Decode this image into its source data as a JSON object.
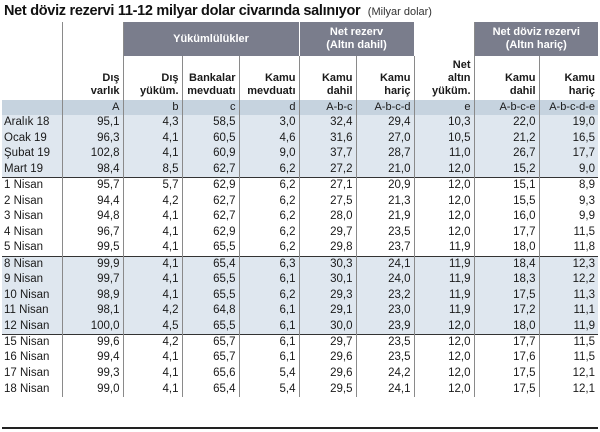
{
  "title": "Net döviz rezervi 11-12 milyar dolar civarında salınıyor",
  "unit": "(Milyar dolar)",
  "groups": {
    "yukumlulukler": "Yükümlülükler",
    "net_rezerv_line1": "Net rezerv",
    "net_rezerv_line2": "(Altın dahil)",
    "net_doviz_line1": "Net döviz rezervi",
    "net_doviz_line2": "(Altın hariç)"
  },
  "columns": [
    {
      "line1": "Dış",
      "line2": "varlık",
      "formula": "A"
    },
    {
      "line1": "Dış",
      "line2": "yüküm.",
      "formula": "b"
    },
    {
      "line1": "Bankalar",
      "line2": "mevduatı",
      "formula": "c"
    },
    {
      "line1": "Kamu",
      "line2": "mevduatı",
      "formula": "d"
    },
    {
      "line1": "Kamu",
      "line2": "dahil",
      "formula": "A-b-c"
    },
    {
      "line1": "Kamu",
      "line2": "hariç",
      "formula": "A-b-c-d"
    },
    {
      "line0": "Net",
      "line1": "altın",
      "line2": "yüküm.",
      "formula": "e"
    },
    {
      "line1": "Kamu",
      "line2": "dahil",
      "formula": "A-b-c-e"
    },
    {
      "line1": "Kamu",
      "line2": "hariç",
      "formula": "A-b-c-d-e"
    }
  ],
  "rows": [
    {
      "label": "Aralık 18",
      "values": [
        "95,1",
        "4,3",
        "58,5",
        "3,0",
        "32,4",
        "29,4",
        "10,3",
        "22,0",
        "19,0"
      ]
    },
    {
      "label": "Ocak 19",
      "values": [
        "96,3",
        "4,1",
        "60,5",
        "4,6",
        "31,6",
        "27,0",
        "10,5",
        "21,2",
        "16,5"
      ]
    },
    {
      "label": "Şubat 19",
      "values": [
        "102,8",
        "4,1",
        "60,9",
        "9,0",
        "37,7",
        "28,7",
        "11,0",
        "26,7",
        "17,7"
      ]
    },
    {
      "label": "Mart 19",
      "values": [
        "98,4",
        "8,5",
        "62,7",
        "6,2",
        "27,2",
        "21,0",
        "12,0",
        "15,2",
        "9,0"
      ]
    },
    {
      "label": "1 Nisan",
      "values": [
        "95,7",
        "5,7",
        "62,9",
        "6,2",
        "27,1",
        "20,9",
        "12,0",
        "15,1",
        "8,9"
      ]
    },
    {
      "label": "2 Nisan",
      "values": [
        "94,4",
        "4,2",
        "62,7",
        "6,2",
        "27,5",
        "21,3",
        "12,0",
        "15,5",
        "9,3"
      ]
    },
    {
      "label": "3 Nisan",
      "values": [
        "94,8",
        "4,1",
        "62,7",
        "6,2",
        "28,0",
        "21,9",
        "12,0",
        "16,0",
        "9,9"
      ]
    },
    {
      "label": "4 Nisan",
      "values": [
        "96,7",
        "4,1",
        "62,9",
        "6,2",
        "29,7",
        "23,5",
        "12,0",
        "17,7",
        "11,5"
      ]
    },
    {
      "label": "5 Nisan",
      "values": [
        "99,5",
        "4,1",
        "65,5",
        "6,2",
        "29,8",
        "23,7",
        "11,9",
        "18,0",
        "11,8"
      ]
    },
    {
      "label": "8 Nisan",
      "values": [
        "99,9",
        "4,1",
        "65,4",
        "6,3",
        "30,3",
        "24,1",
        "11,9",
        "18,4",
        "12,3"
      ]
    },
    {
      "label": "9 Nisan",
      "values": [
        "99,7",
        "4,1",
        "65,5",
        "6,1",
        "30,1",
        "24,0",
        "11,9",
        "18,3",
        "12,2"
      ]
    },
    {
      "label": "10 Nisan",
      "values": [
        "98,9",
        "4,1",
        "65,5",
        "6,2",
        "29,3",
        "23,2",
        "11,9",
        "17,5",
        "11,3"
      ]
    },
    {
      "label": "11 Nisan",
      "values": [
        "98,1",
        "4,2",
        "64,8",
        "6,1",
        "29,1",
        "23,0",
        "11,9",
        "17,2",
        "11,1"
      ]
    },
    {
      "label": "12 Nisan",
      "values": [
        "100,0",
        "4,5",
        "65,5",
        "6,1",
        "30,0",
        "23,9",
        "12,0",
        "18,0",
        "11,9"
      ]
    },
    {
      "label": "15 Nisan",
      "values": [
        "99,6",
        "4,2",
        "65,7",
        "6,1",
        "29,7",
        "23,5",
        "12,0",
        "17,7",
        "11,5"
      ]
    },
    {
      "label": "16 Nisan",
      "values": [
        "99,4",
        "4,1",
        "65,7",
        "6,1",
        "29,6",
        "23,5",
        "12,0",
        "17,6",
        "11,5"
      ]
    },
    {
      "label": "17 Nisan",
      "values": [
        "99,3",
        "4,1",
        "65,6",
        "5,4",
        "29,6",
        "24,2",
        "12,0",
        "17,5",
        "12,1"
      ]
    },
    {
      "label": "18 Nisan",
      "values": [
        "99,0",
        "4,1",
        "65,4",
        "5,4",
        "29,5",
        "24,1",
        "12,0",
        "17,5",
        "12,1"
      ]
    }
  ],
  "colors": {
    "group_header": "#7a7d8c",
    "formula_row": "#c6d3df",
    "shaded_rows": "#dfe7ef"
  }
}
